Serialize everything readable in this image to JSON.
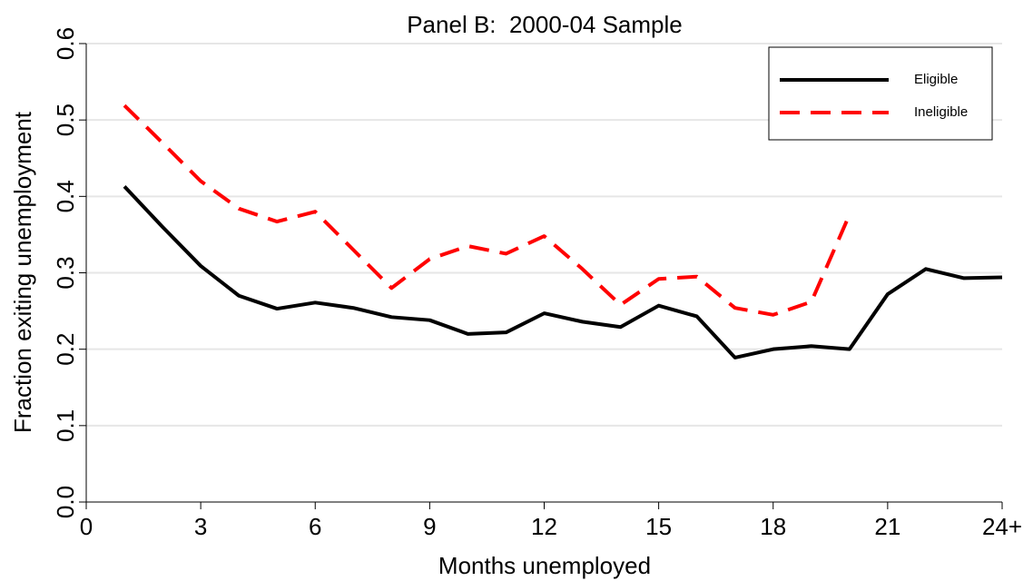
{
  "chart_data": {
    "type": "line",
    "title": "Panel B:  2000-04 Sample",
    "x_label": "Months unemployed",
    "y_label": "Fraction exiting unemployment",
    "x": [
      1,
      2,
      3,
      4,
      5,
      6,
      7,
      8,
      9,
      10,
      11,
      12,
      13,
      14,
      15,
      16,
      17,
      18,
      19,
      20,
      21,
      22,
      23,
      24
    ],
    "series": [
      {
        "name": "Eligible",
        "color": "#000000",
        "dash": "solid",
        "values": [
          0.413,
          0.36,
          0.309,
          0.27,
          0.253,
          0.261,
          0.254,
          0.242,
          0.238,
          0.22,
          0.222,
          0.247,
          0.236,
          0.229,
          0.257,
          0.243,
          0.189,
          0.2,
          0.204,
          0.2,
          0.272,
          0.305,
          0.293,
          0.294
        ]
      },
      {
        "name": "Ineligible",
        "color": "#ff0000",
        "dash": "dashed",
        "values": [
          0.519,
          0.47,
          0.42,
          0.384,
          0.367,
          0.38,
          0.33,
          0.28,
          0.318,
          0.335,
          0.325,
          0.348,
          0.305,
          0.258,
          0.292,
          0.295,
          0.254,
          0.245,
          0.262,
          0.376,
          null,
          null,
          null,
          null
        ]
      }
    ],
    "xlim": [
      0,
      24
    ],
    "xticks": [
      0,
      3,
      6,
      9,
      12,
      15,
      18,
      21,
      {
        "value": 24,
        "label": "24+"
      }
    ],
    "ylim": [
      0,
      0.6
    ],
    "yticks": [
      {
        "value": 0,
        "label": "0.0"
      },
      0.1,
      0.2,
      0.3,
      0.4,
      0.5,
      0.6
    ],
    "grid": true,
    "legend": "top-right"
  }
}
